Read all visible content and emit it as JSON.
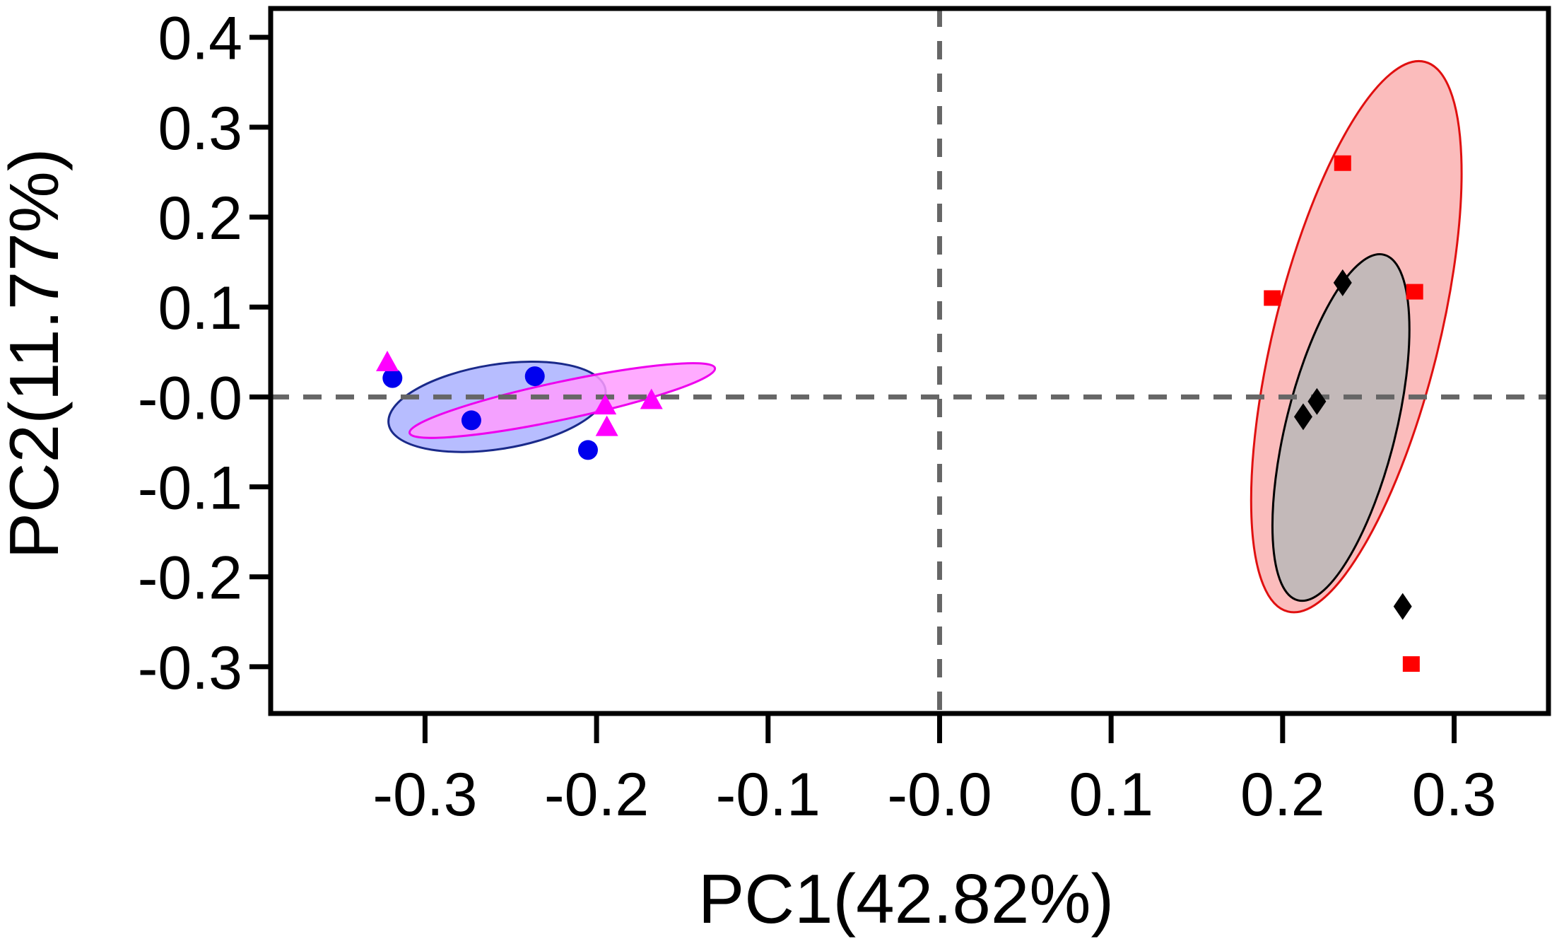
{
  "chart_data": {
    "type": "scatter",
    "title": "",
    "xlabel": "PC1(42.82%)",
    "ylabel": "PC2(11.77%)",
    "xlim": [
      -0.39,
      0.355
    ],
    "ylim": [
      -0.352,
      0.432
    ],
    "xticks": [
      -0.3,
      -0.2,
      -0.1,
      0.0,
      0.1,
      0.2,
      0.3
    ],
    "yticks": [
      0.4,
      0.3,
      0.2,
      0.1,
      0.0,
      -0.1,
      -0.2,
      -0.3
    ],
    "xtick_labels": [
      "-0.3",
      "-0.2",
      "-0.1",
      "-0.0",
      "0.1",
      "0.2",
      "0.3"
    ],
    "ytick_labels": [
      "0.4",
      "0.3",
      "0.2",
      "0.1",
      "-0.0",
      "-0.1",
      "-0.2",
      "-0.3"
    ],
    "reference_lines": {
      "x": 0.0,
      "y": 0.0,
      "style": "dashed",
      "color": "#666666"
    },
    "grid": false,
    "legend": "none",
    "series": [
      {
        "marker": "circle",
        "color": "#0000ee",
        "ellipse_fill": "#aab2ff",
        "ellipse_stroke": "#1a2a8a",
        "points": [
          [
            -0.319,
            0.021
          ],
          [
            -0.236,
            0.023
          ],
          [
            -0.273,
            -0.026
          ],
          [
            -0.205,
            -0.059
          ]
        ],
        "ellipse": {
          "cx": -0.258,
          "cy": -0.011,
          "rx": 0.064,
          "ry": 0.047,
          "angle_deg": -9
        }
      },
      {
        "marker": "triangle",
        "color": "#ff00ff",
        "ellipse_fill": "#ff9cff",
        "ellipse_stroke": "#ee00ee",
        "points": [
          [
            -0.322,
            0.038
          ],
          [
            -0.195,
            -0.01
          ],
          [
            -0.194,
            -0.034
          ],
          [
            -0.168,
            -0.004
          ]
        ],
        "ellipse": {
          "cx": -0.22,
          "cy": -0.004,
          "rx": 0.091,
          "ry": 0.021,
          "angle_deg": -12
        }
      },
      {
        "marker": "square",
        "color": "#ff0000",
        "ellipse_fill": "#fab0b0",
        "ellipse_stroke": "#e01010",
        "points": [
          [
            0.235,
            0.26
          ],
          [
            0.194,
            0.11
          ],
          [
            0.277,
            0.117
          ],
          [
            0.275,
            -0.297
          ]
        ],
        "ellipse": {
          "cx": 0.243,
          "cy": 0.067,
          "rx": 0.048,
          "ry": 0.315,
          "angle_deg": 14
        }
      },
      {
        "marker": "diamond",
        "color": "#000000",
        "ellipse_fill": "#b8b8b8",
        "ellipse_stroke": "#000000",
        "points": [
          [
            0.235,
            0.127
          ],
          [
            0.22,
            -0.005
          ],
          [
            0.212,
            -0.022
          ],
          [
            0.27,
            -0.233
          ]
        ],
        "ellipse": {
          "cx": 0.234,
          "cy": -0.034,
          "rx": 0.032,
          "ry": 0.198,
          "angle_deg": 14
        }
      }
    ]
  }
}
